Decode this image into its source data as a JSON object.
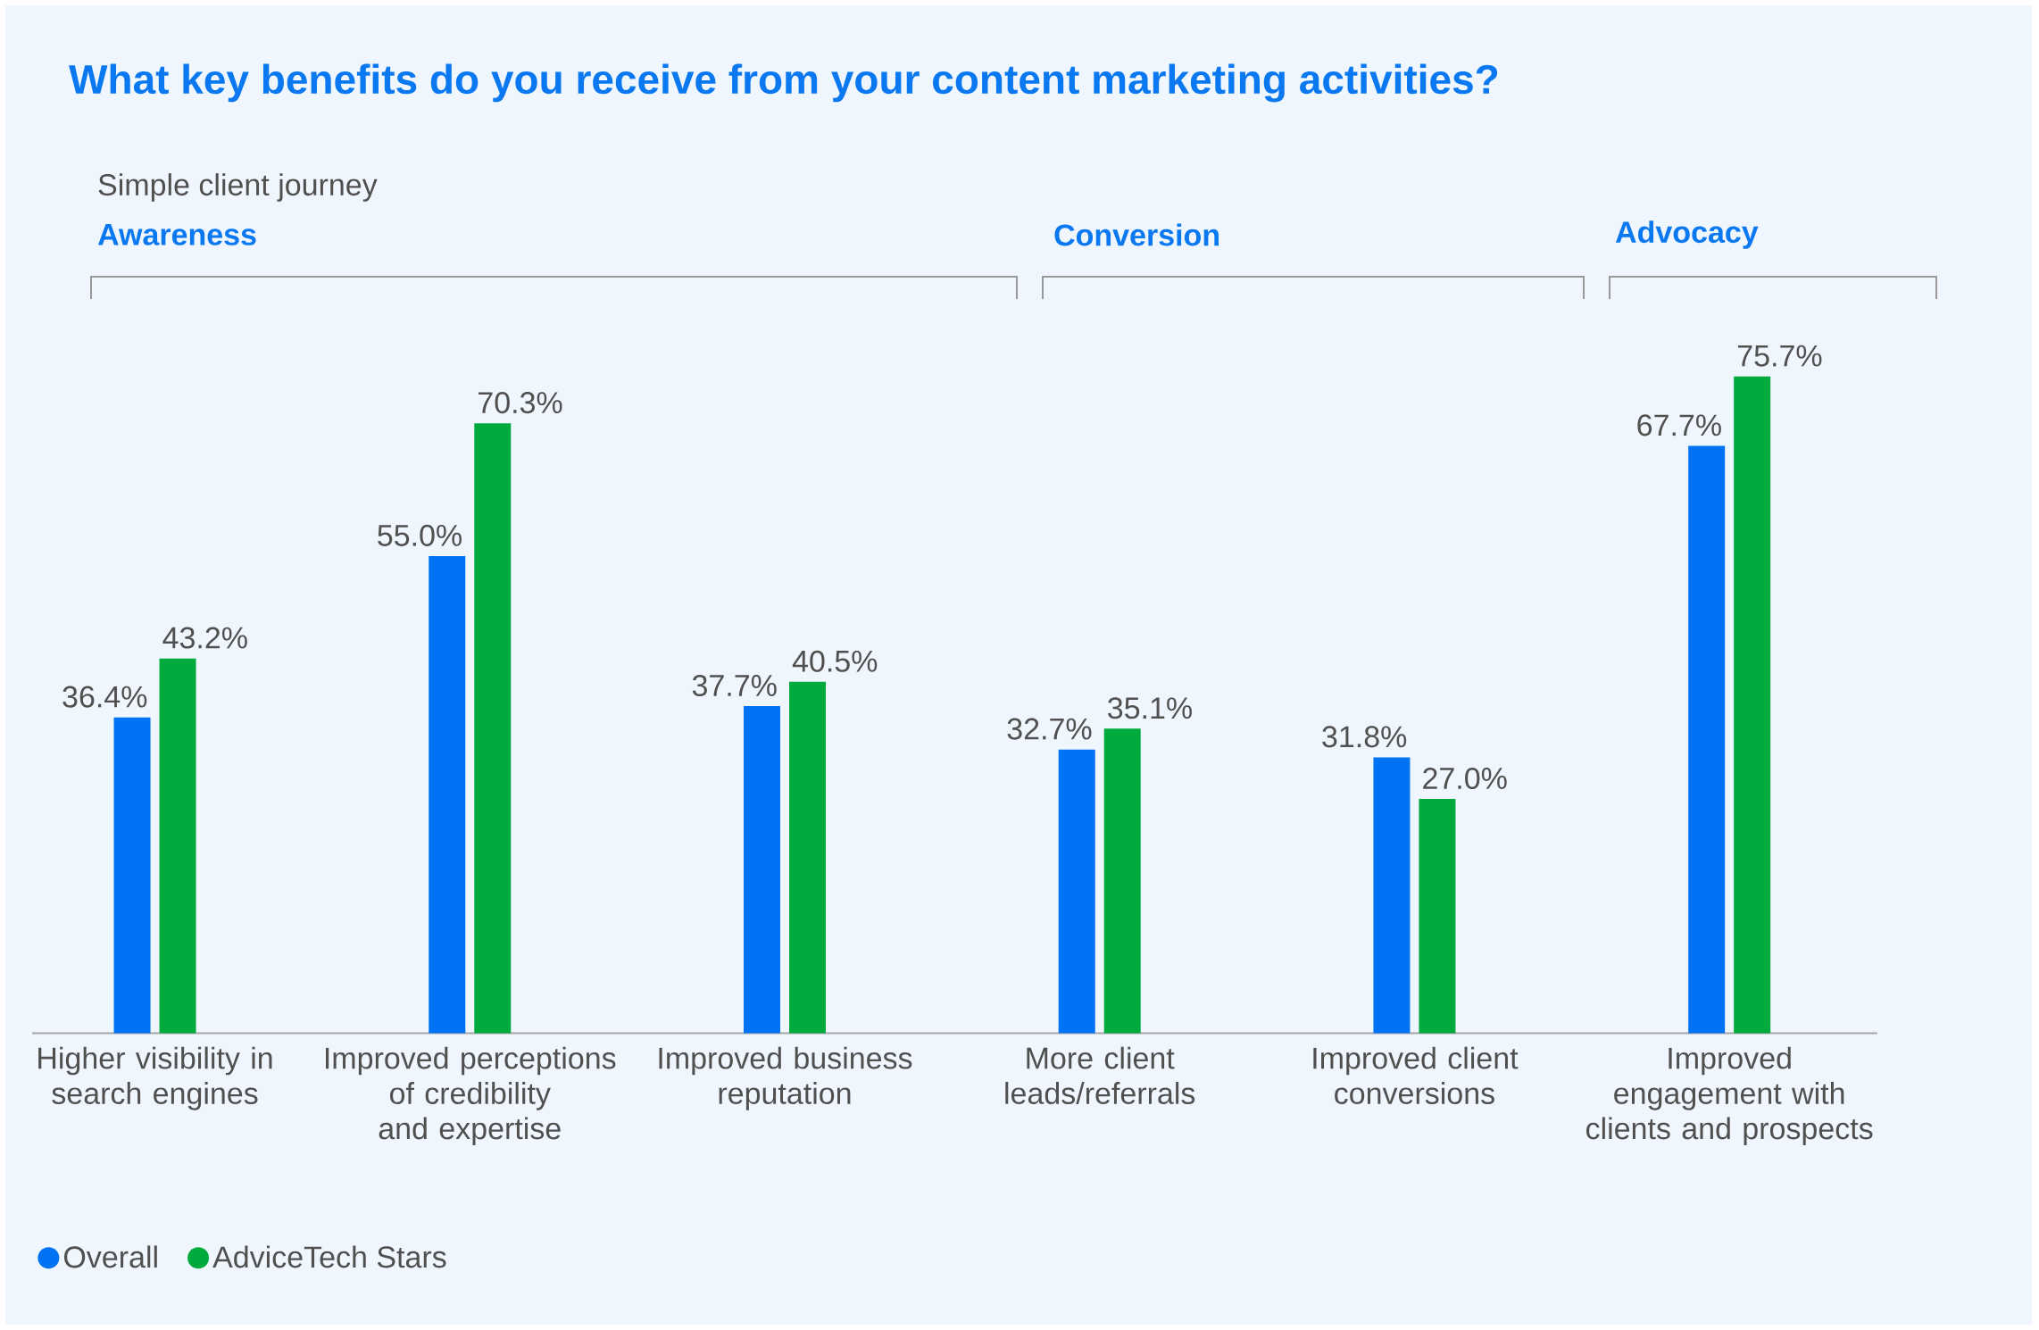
{
  "chart_data": {
    "type": "bar",
    "title": "What key benefits do you receive from your content marketing activities?",
    "categories": [
      "Higher visibility in search engines",
      "Improved perceptions of credibility and expertise",
      "Improved business reputation",
      "More client leads/referrals",
      "Improved client conversions",
      "Improved engagement with clients and prospects"
    ],
    "series": [
      {
        "name": "Overall",
        "color": "#0073f5",
        "values": [
          36.4,
          55.0,
          37.7,
          32.7,
          31.8,
          67.7
        ],
        "value_labels": [
          "36.4%",
          "55.0%",
          "37.7%",
          "32.7%",
          "31.8%",
          "67.7%"
        ]
      },
      {
        "name": "AdviceTech Stars",
        "color": "#00aa3c",
        "values": [
          43.2,
          70.3,
          40.5,
          35.1,
          27.0,
          75.7
        ],
        "value_labels": [
          "43.2%",
          "70.3%",
          "40.5%",
          "35.1%",
          "27.0%",
          "75.7%"
        ]
      }
    ],
    "annotations": [
      "Simple client journey",
      "Awareness",
      "Conversion",
      "Advocacy"
    ],
    "legend": "bottom left",
    "marker": "circle"
  }
}
